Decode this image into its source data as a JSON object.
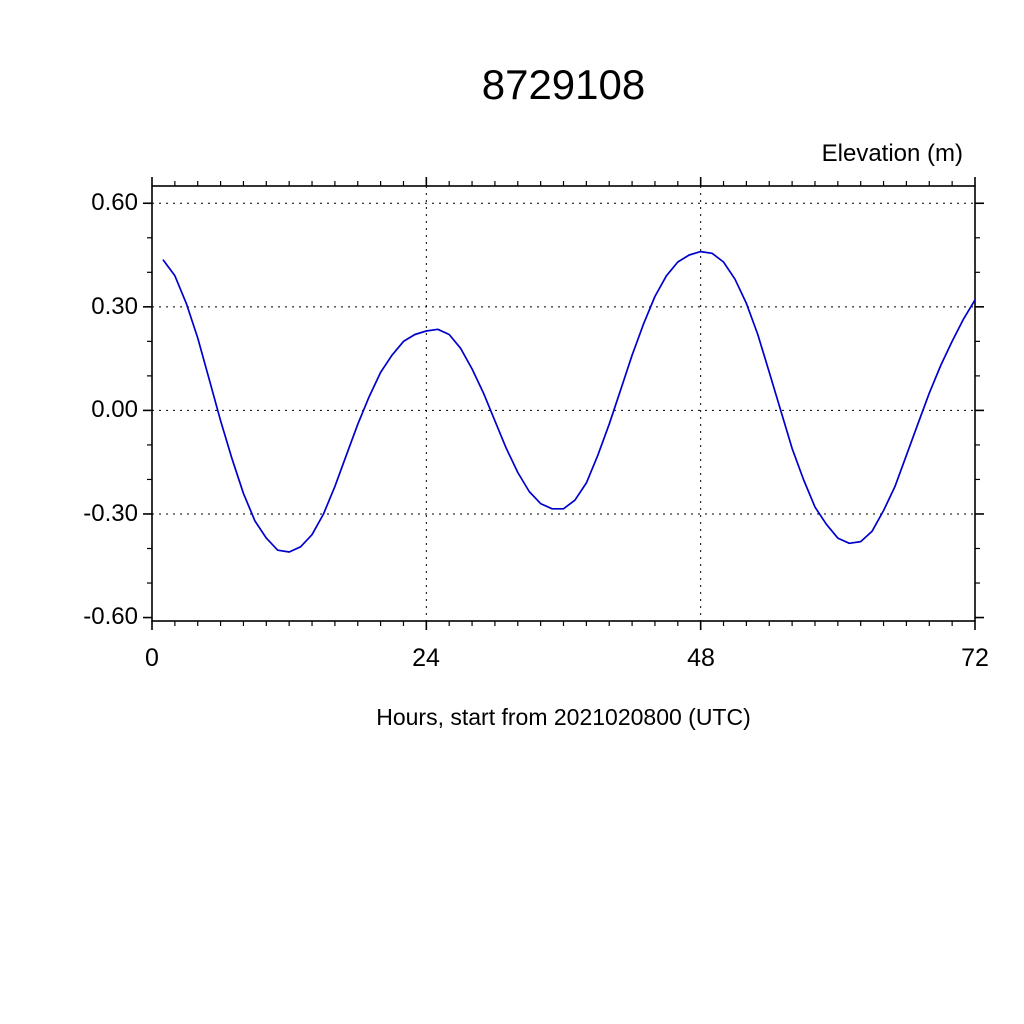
{
  "page": {
    "background": "#ffffff"
  },
  "chart_data": {
    "type": "line",
    "title": "8729108",
    "ylabel": "Elevation (m)",
    "xlabel": "Hours, start from 2021020800 (UTC)",
    "xlim": [
      0,
      72
    ],
    "ylim": [
      -0.61,
      0.65
    ],
    "x_major_ticks": [
      0,
      24,
      48,
      72
    ],
    "x_tick_labels": [
      "0",
      "24",
      "48",
      "72"
    ],
    "y_major_ticks": [
      0.6,
      0.3,
      0.0,
      -0.3,
      -0.6
    ],
    "y_tick_labels": [
      "0.60",
      "0.30",
      "0.00",
      "-0.30",
      "-0.60"
    ],
    "x_minor_step": 2,
    "y_minor_step": 0.1,
    "h_gridlines": [
      0.6,
      0.3,
      0.0,
      -0.3
    ],
    "v_gridlines": [
      24,
      48
    ],
    "grid_style": "dashed",
    "grid_on": true,
    "legend": "none",
    "line_color": "#0000cc",
    "axis_color": "#000000",
    "series": [
      {
        "name": "elevation",
        "x": [
          1,
          2,
          3,
          4,
          5,
          6,
          7,
          8,
          9,
          10,
          11,
          12,
          13,
          14,
          15,
          16,
          17,
          18,
          19,
          20,
          21,
          22,
          23,
          24,
          25,
          26,
          27,
          28,
          29,
          30,
          31,
          32,
          33,
          34,
          35,
          36,
          37,
          38,
          39,
          40,
          41,
          42,
          43,
          44,
          45,
          46,
          47,
          48,
          49,
          50,
          51,
          52,
          53,
          54,
          55,
          56,
          57,
          58,
          59,
          60,
          61,
          62,
          63,
          64,
          65,
          66,
          67,
          68,
          69,
          70,
          71,
          72
        ],
        "y": [
          0.435,
          0.39,
          0.31,
          0.21,
          0.09,
          -0.03,
          -0.14,
          -0.24,
          -0.32,
          -0.37,
          -0.405,
          -0.41,
          -0.395,
          -0.36,
          -0.3,
          -0.22,
          -0.13,
          -0.04,
          0.04,
          0.11,
          0.16,
          0.2,
          0.22,
          0.23,
          0.235,
          0.22,
          0.18,
          0.12,
          0.05,
          -0.03,
          -0.11,
          -0.18,
          -0.235,
          -0.27,
          -0.285,
          -0.285,
          -0.26,
          -0.21,
          -0.13,
          -0.04,
          0.06,
          0.16,
          0.25,
          0.33,
          0.39,
          0.43,
          0.45,
          0.46,
          0.455,
          0.43,
          0.38,
          0.31,
          0.22,
          0.11,
          0.0,
          -0.11,
          -0.2,
          -0.28,
          -0.33,
          -0.37,
          -0.385,
          -0.38,
          -0.35,
          -0.29,
          -0.22,
          -0.13,
          -0.04,
          0.05,
          0.13,
          0.2,
          0.265,
          0.32
        ]
      }
    ]
  }
}
